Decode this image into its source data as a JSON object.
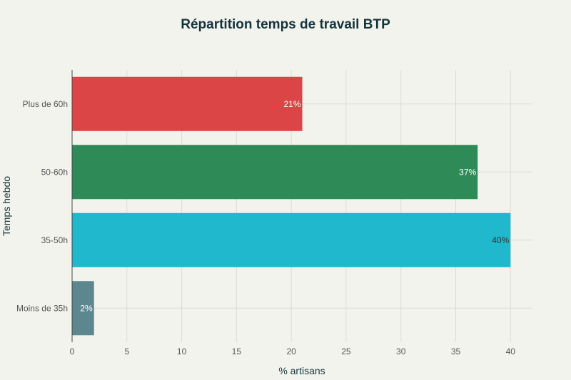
{
  "chart_data": {
    "type": "bar",
    "orientation": "horizontal",
    "title": "Répartition temps de travail BTP",
    "xlabel": "% artisans",
    "ylabel": "Temps hebdo",
    "categories": [
      "Moins de 35h",
      "35-50h",
      "50-60h",
      "Plus de 60h"
    ],
    "values": [
      2,
      40,
      37,
      21
    ],
    "data_labels": [
      "2%",
      "40%",
      "37%",
      "21%"
    ],
    "colors": [
      "#5d878f",
      "#1fb8cd",
      "#2e8b57",
      "#db4545"
    ],
    "label_colors": [
      "#ffffff",
      "#333333",
      "#ffffff",
      "#ffffff"
    ],
    "xlim": [
      0,
      42
    ],
    "xticks": [
      0,
      5,
      10,
      15,
      20,
      25,
      30,
      35,
      40
    ],
    "grid": true,
    "legend": "none"
  }
}
